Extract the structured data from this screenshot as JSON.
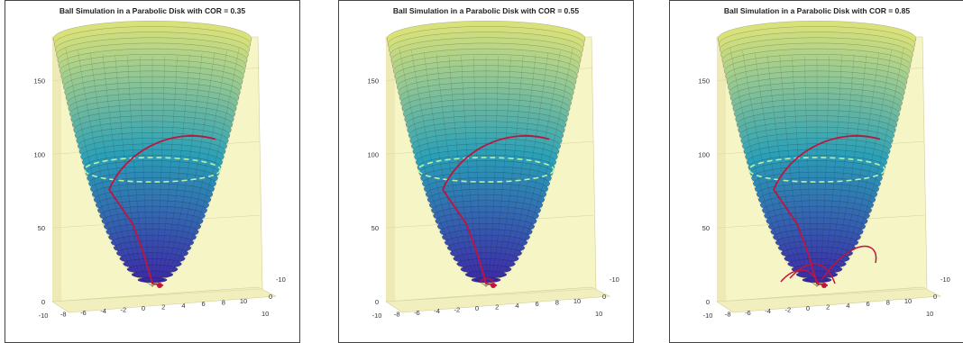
{
  "chart_data": [
    {
      "type": "surface3d",
      "title": "Ball Simulation in a Parabolic Disk with COR = 0.35",
      "cor": 0.35,
      "xlabel": "",
      "ylabel": "",
      "zlabel": "",
      "x_ticks": [
        "-10",
        "-8",
        "-6",
        "-4",
        "-2",
        "0",
        "2",
        "4",
        "6",
        "8",
        "10"
      ],
      "y_ticks": [
        "-10",
        "0",
        "10"
      ],
      "z_ticks": [
        "0",
        "50",
        "100",
        "150"
      ],
      "xlim": [
        -10,
        10
      ],
      "ylim": [
        -10,
        10
      ],
      "zlim": [
        0,
        160
      ],
      "surface": "z = x^2 + y^2 (parabolic disk, parula colormap)",
      "rim_height": 75
    },
    {
      "type": "surface3d",
      "title": "Ball Simulation in a Parabolic Disk with COR = 0.55",
      "cor": 0.55,
      "xlabel": "",
      "ylabel": "",
      "zlabel": "",
      "x_ticks": [
        "-10",
        "-8",
        "-6",
        "-4",
        "-2",
        "0",
        "2",
        "4",
        "6",
        "8",
        "10"
      ],
      "y_ticks": [
        "-10",
        "0",
        "10"
      ],
      "z_ticks": [
        "0",
        "50",
        "100",
        "150"
      ],
      "xlim": [
        -10,
        10
      ],
      "ylim": [
        -10,
        10
      ],
      "zlim": [
        0,
        160
      ],
      "surface": "z = x^2 + y^2 (parabolic disk, parula colormap)",
      "rim_height": 75
    },
    {
      "type": "surface3d",
      "title": "Ball Simulation in a Parabolic Disk with COR = 0.85",
      "cor": 0.85,
      "xlabel": "",
      "ylabel": "",
      "zlabel": "",
      "x_ticks": [
        "-10",
        "-8",
        "-6",
        "-4",
        "-2",
        "0",
        "2",
        "4",
        "6",
        "8",
        "10"
      ],
      "y_ticks": [
        "-10",
        "0",
        "10"
      ],
      "z_ticks": [
        "0",
        "50",
        "100",
        "150"
      ],
      "xlim": [
        -10,
        10
      ],
      "ylim": [
        -10,
        10
      ],
      "zlim": [
        0,
        160
      ],
      "surface": "z = x^2 + y^2 (parabolic disk, parula colormap)",
      "rim_height": 75
    }
  ],
  "colors": {
    "pane": "#f6f5c6",
    "pane_grid": "#d8d6a0",
    "rim_dashed": "#b9f2a6",
    "trajectory": "#c0143c",
    "surface_low": "#3e26a8",
    "surface_mid": "#2a9fb7",
    "surface_high": "#d9e27a"
  }
}
